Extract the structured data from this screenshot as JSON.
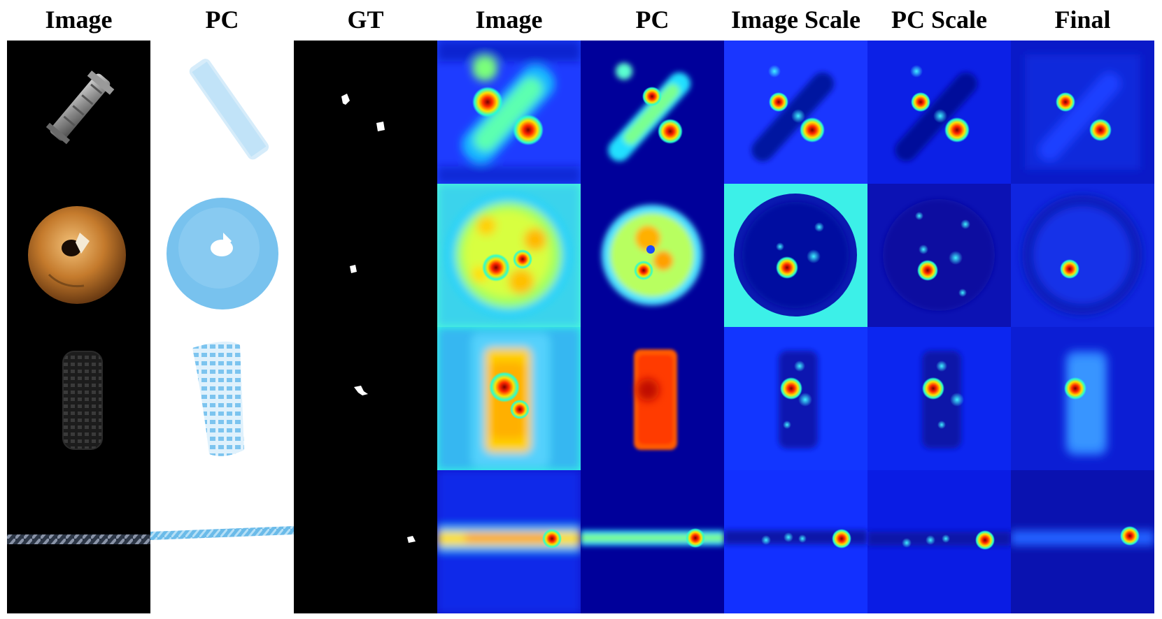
{
  "columns": [
    "Image",
    "PC",
    "GT",
    "Image",
    "PC",
    "Image Scale",
    "PC Scale",
    "Final"
  ],
  "rows": [
    {
      "sample": "dowel"
    },
    {
      "sample": "bagel"
    },
    {
      "sample": "tire"
    },
    {
      "sample": "rope"
    }
  ],
  "colors": {
    "background": "#ffffff",
    "black": "#000000",
    "jet_low": "#00008f",
    "jet_high": "#800000",
    "pc_blue": "#7cc4ef"
  }
}
